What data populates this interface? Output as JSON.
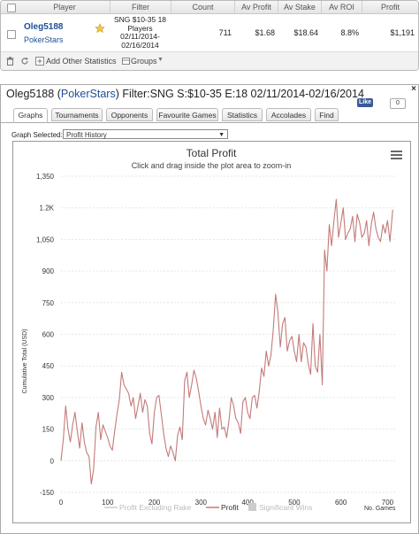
{
  "table": {
    "headers": [
      "Player",
      "Filter",
      "Count",
      "Av Profit",
      "Av Stake",
      "Av ROI",
      "Profit"
    ],
    "row": {
      "player_name": "Oleg5188",
      "player_site": "PokerStars",
      "filter_lines": [
        "SNG $10-35 18",
        "Players",
        "02/11/2014-",
        "02/16/2014"
      ],
      "count": "711",
      "av_profit": "$1.68",
      "av_stake": "$18.64",
      "av_roi": "8.8%",
      "profit": "$1,191"
    },
    "footer": {
      "add_stats": "Add Other Statistics",
      "groups": "Groups"
    }
  },
  "panel": {
    "title_player": "Oleg5188",
    "title_site": "PokerStars",
    "title_filter": "Filter:SNG S:$10-35 E:18 02/11/2014-02/16/2014",
    "like_label": "Like",
    "like_count": "0",
    "close": "×",
    "tabs": [
      "Graphs",
      "Tournaments",
      "Opponents",
      "Favourite Games",
      "Statistics",
      "Accolades",
      "Find"
    ],
    "active_tab": "Graphs",
    "graph_selected_label": "Graph Selected:",
    "graph_selected_value": "Profit History"
  },
  "chart_data": {
    "type": "line",
    "title": "Total Profit",
    "subtitle": "Click and drag inside the plot area to zoom-in",
    "ylabel": "Cumulative Total (USD)",
    "xlabel": "No. Games",
    "xlim": [
      0,
      720
    ],
    "ylim": [
      -150,
      1350
    ],
    "xticks": [
      0,
      100,
      200,
      300,
      400,
      500,
      600,
      700
    ],
    "yticks": [
      -150,
      0,
      150,
      300,
      450,
      600,
      750,
      900,
      1050,
      1200,
      1350
    ],
    "ytick_labels": [
      "-150",
      "0",
      "150",
      "300",
      "450",
      "600",
      "750",
      "900",
      "1,050",
      "1.2K",
      "1,350"
    ],
    "legend": [
      "Profit Excluding Rake",
      "Profit",
      "Significant Wins"
    ],
    "line_color": "#c47a7a",
    "series": [
      {
        "name": "Profit",
        "x": [
          0,
          5,
          10,
          15,
          20,
          25,
          30,
          35,
          40,
          45,
          50,
          55,
          60,
          65,
          70,
          75,
          80,
          85,
          90,
          95,
          100,
          105,
          110,
          115,
          120,
          125,
          130,
          135,
          140,
          145,
          150,
          155,
          160,
          165,
          170,
          175,
          180,
          185,
          190,
          195,
          200,
          205,
          210,
          215,
          220,
          225,
          230,
          235,
          240,
          245,
          250,
          255,
          260,
          265,
          270,
          275,
          280,
          285,
          290,
          295,
          300,
          305,
          310,
          315,
          320,
          325,
          330,
          335,
          340,
          345,
          350,
          355,
          360,
          365,
          370,
          375,
          380,
          385,
          390,
          395,
          400,
          405,
          410,
          415,
          420,
          425,
          430,
          435,
          440,
          445,
          450,
          455,
          460,
          465,
          470,
          475,
          480,
          485,
          490,
          495,
          500,
          505,
          510,
          515,
          520,
          525,
          530,
          535,
          540,
          545,
          550,
          555,
          560,
          565,
          570,
          575,
          580,
          585,
          590,
          595,
          600,
          605,
          610,
          615,
          620,
          625,
          630,
          635,
          640,
          645,
          650,
          655,
          660,
          665,
          670,
          675,
          680,
          685,
          690,
          695,
          700,
          705,
          711
        ],
        "y": [
          0,
          100,
          260,
          150,
          90,
          170,
          230,
          140,
          60,
          180,
          90,
          40,
          20,
          -110,
          -40,
          160,
          230,
          100,
          170,
          140,
          110,
          70,
          50,
          140,
          220,
          290,
          420,
          360,
          340,
          320,
          260,
          300,
          200,
          260,
          320,
          230,
          290,
          260,
          130,
          80,
          230,
          300,
          310,
          220,
          130,
          60,
          20,
          70,
          40,
          0,
          120,
          160,
          100,
          380,
          420,
          300,
          360,
          430,
          390,
          330,
          260,
          200,
          170,
          240,
          200,
          150,
          230,
          110,
          250,
          150,
          160,
          110,
          190,
          300,
          260,
          200,
          180,
          130,
          280,
          300,
          230,
          200,
          300,
          310,
          250,
          330,
          440,
          400,
          520,
          450,
          500,
          620,
          790,
          700,
          540,
          650,
          680,
          520,
          570,
          590,
          520,
          470,
          600,
          470,
          560,
          540,
          460,
          410,
          650,
          450,
          420,
          600,
          360,
          1000,
          900,
          1120,
          1020,
          1140,
          1240,
          1060,
          1130,
          1200,
          1050,
          1080,
          1100,
          1160,
          1040,
          1170,
          1130,
          1060,
          1080,
          1140,
          1020,
          1120,
          1180,
          1100,
          1060,
          1040,
          1120,
          1080,
          1140,
          1040,
          1191
        ]
      }
    ]
  }
}
